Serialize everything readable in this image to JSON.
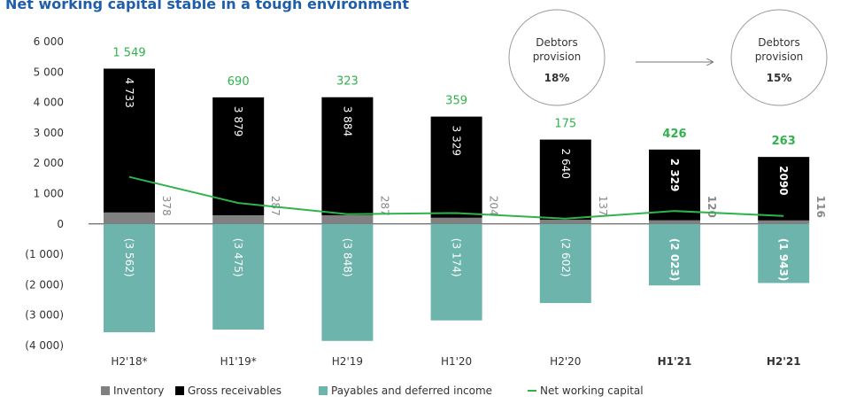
{
  "chart_data": {
    "type": "bar",
    "title": "Net working capital stable in a tough environment",
    "categories": [
      "H2'18*",
      "H1'19*",
      "H2'19",
      "H1'20",
      "H2'20",
      "H1'21",
      "H2'21"
    ],
    "emphasis": [
      5,
      6
    ],
    "series": [
      {
        "name": "Inventory",
        "color": "#808080",
        "values": [
          378,
          287,
          287,
          204,
          137,
          120,
          116
        ]
      },
      {
        "name": "Gross receivables",
        "color": "#000000",
        "values": [
          4733,
          3879,
          3884,
          3329,
          2640,
          2329,
          2090
        ],
        "value_labels": [
          "4 733",
          "3 879",
          "3 884",
          "3 329",
          "2 640",
          "2 329",
          "2090"
        ]
      },
      {
        "name": "Payables and deferred income",
        "color": "#6db5ac",
        "values": [
          -3562,
          -3475,
          -3848,
          -3174,
          -2602,
          -2023,
          -1943
        ],
        "value_labels": [
          "(3 562)",
          "(3 475)",
          "(3 848)",
          "(3 174)",
          "(2 602)",
          "(2 023)",
          "(1 943)"
        ]
      },
      {
        "name": "Net working capital",
        "color": "#2fb44c",
        "type": "line",
        "values": [
          1549,
          690,
          323,
          359,
          175,
          426,
          263
        ],
        "value_labels": [
          "1 549",
          "690",
          "323",
          "359",
          "175",
          "426",
          "263"
        ]
      }
    ],
    "ylim": [
      -4000,
      6000
    ],
    "yticks": [
      {
        "value": 6000,
        "label": "6 000"
      },
      {
        "value": 5000,
        "label": "5 000"
      },
      {
        "value": 4000,
        "label": "4 000"
      },
      {
        "value": 3000,
        "label": "3 000"
      },
      {
        "value": 2000,
        "label": "2 000"
      },
      {
        "value": 1000,
        "label": "1 000"
      },
      0,
      {
        "value": -1000,
        "label": "(1 000)"
      },
      {
        "value": -2000,
        "label": "(2 000)"
      },
      {
        "value": -3000,
        "label": "(3 000)"
      },
      {
        "value": -4000,
        "label": "(4 000)"
      }
    ],
    "annotations": [
      {
        "text": "Debtors provision",
        "value": "18%"
      },
      {
        "text": "Debtors provision",
        "value": "15%"
      }
    ]
  }
}
